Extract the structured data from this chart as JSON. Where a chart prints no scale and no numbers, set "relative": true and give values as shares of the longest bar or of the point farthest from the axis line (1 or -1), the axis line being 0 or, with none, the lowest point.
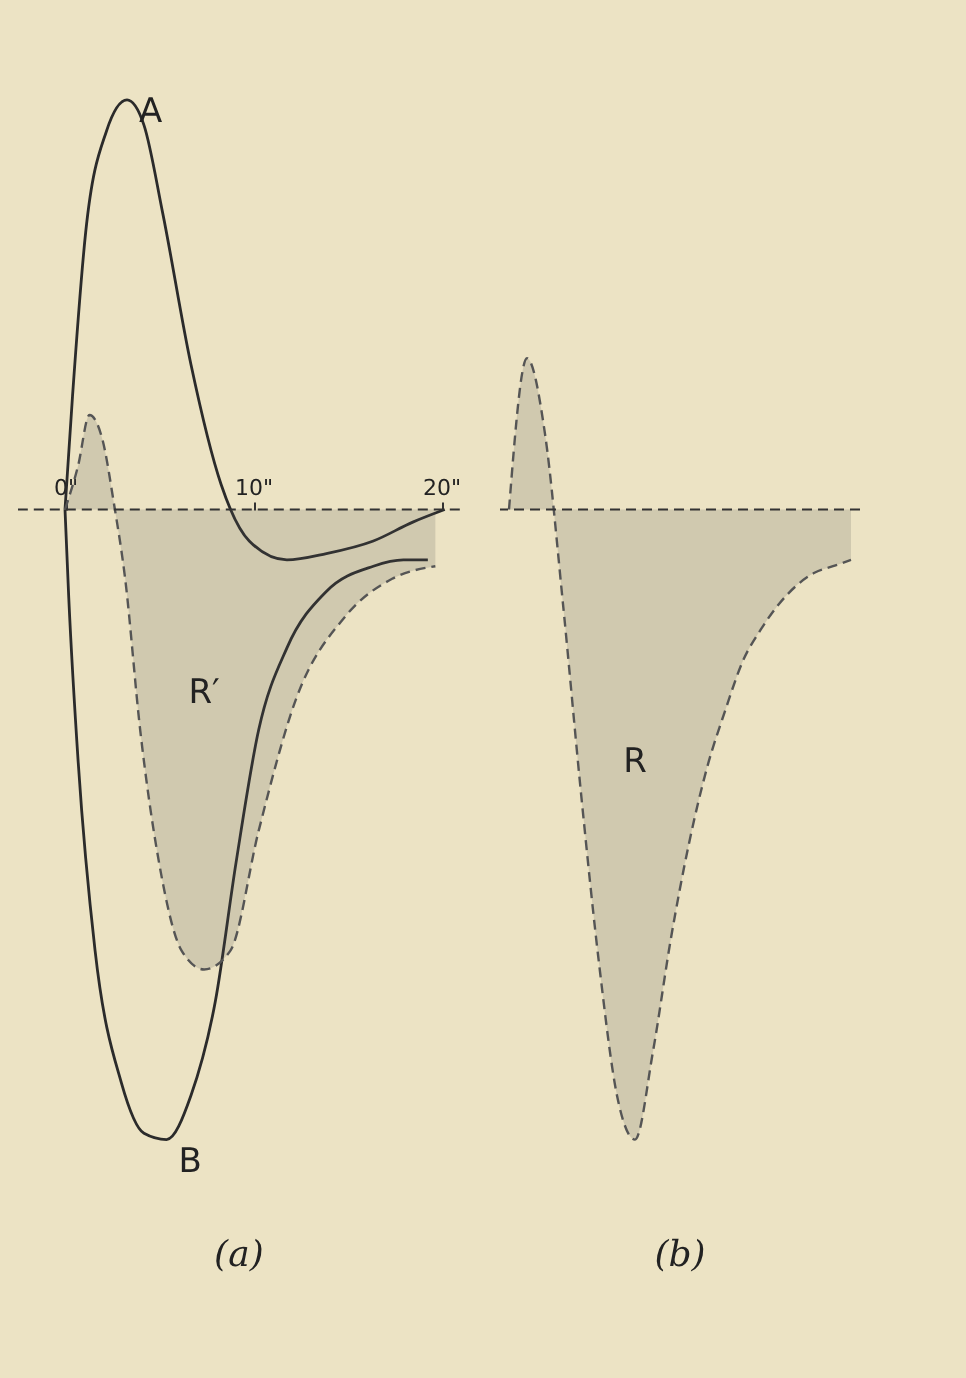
{
  "chart_data": [
    {
      "type": "line",
      "title": "(a)",
      "relative": true,
      "ref_lines": [
        {
          "axis": "y",
          "value": 0,
          "color": "#333333",
          "line_style": "dashed"
        }
      ],
      "grid": false,
      "xlim": [
        -2.5,
        21
      ],
      "xticks": [
        {
          "value": 0,
          "label": "0\""
        },
        {
          "value": 10,
          "label": "10\""
        },
        {
          "value": 20,
          "label": "20\""
        }
      ],
      "series": [
        {
          "name": "A",
          "color": "#2b2b2b",
          "line_style": "solid",
          "x": [
            0,
            0.4,
            1.1,
            2.2,
            3.3,
            4.2,
            5.2,
            6.7,
            8.3,
            9.8,
            11.8,
            13.9,
            16.4,
            18.5,
            20.2
          ],
          "values": [
            0,
            0.18,
            0.44,
            0.6,
            0.65,
            0.61,
            0.47,
            0.23,
            0.04,
            -0.05,
            -0.08,
            -0.07,
            -0.05,
            -0.02,
            0
          ]
        },
        {
          "name": "B",
          "color": "#2b2b2b",
          "line_style": "solid",
          "x": [
            0,
            0.2,
            0.7,
            1.6,
            3.0,
            4.2,
            5.4,
            6.7,
            8.0,
            9.1,
            10.3,
            11.8,
            13.9,
            16.4,
            18.0,
            19.3
          ],
          "values": [
            0,
            -0.14,
            -0.4,
            -0.7,
            -0.91,
            -0.99,
            -1.0,
            -0.93,
            -0.78,
            -0.56,
            -0.35,
            -0.22,
            -0.13,
            -0.09,
            -0.08,
            -0.08
          ]
        },
        {
          "name": "R′",
          "type": "area",
          "color": "#555555",
          "line_style": "dashed",
          "x": [
            0,
            0.7,
            1.3,
            2.0,
            2.6,
            3.2,
            4.0,
            5.0,
            6.2,
            7.4,
            8.8,
            10.3,
            12.3,
            14.9,
            17.4,
            19.7
          ],
          "values": [
            0,
            0.07,
            0.15,
            0.11,
            0.01,
            -0.11,
            -0.35,
            -0.56,
            -0.7,
            -0.73,
            -0.7,
            -0.51,
            -0.3,
            -0.17,
            -0.11,
            -0.09
          ]
        }
      ]
    },
    {
      "type": "area",
      "title": "(b)",
      "relative": true,
      "ref_lines": [
        {
          "axis": "y",
          "value": 0,
          "color": "#333333",
          "line_style": "dashed"
        }
      ],
      "grid": false,
      "categories": [
        null,
        null,
        null,
        null,
        null,
        null,
        null,
        null,
        null,
        null,
        null,
        null,
        null,
        null,
        null,
        null,
        null,
        null,
        null,
        null
      ],
      "series": [
        {
          "name": "R",
          "color": "#555555",
          "line_style": "dashed",
          "values": [
            0,
            0.24,
            0.12,
            -0.15,
            -0.45,
            -0.72,
            -0.93,
            -1.0,
            -0.86,
            -0.68,
            -0.53,
            -0.41,
            -0.32,
            -0.24,
            -0.19,
            -0.15,
            -0.12,
            -0.1,
            -0.09,
            -0.08
          ]
        }
      ]
    }
  ]
}
